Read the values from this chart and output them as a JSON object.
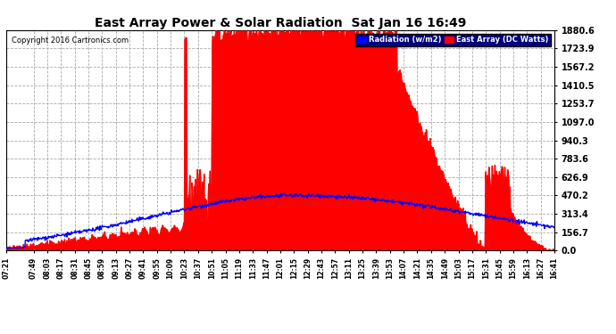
{
  "title": "East Array Power & Solar Radiation  Sat Jan 16 16:49",
  "copyright": "Copyright 2016 Cartronics.com",
  "yticks": [
    0.0,
    156.7,
    313.4,
    470.2,
    626.9,
    783.6,
    940.3,
    1097.0,
    1253.7,
    1410.5,
    1567.2,
    1723.9,
    1880.6
  ],
  "ymax": 1880.6,
  "ymin": 0.0,
  "bg_color": "#ffffff",
  "plot_bg_color": "#ffffff",
  "grid_color": "#aaaaaa",
  "title_color": "#000000",
  "radiation_color": "#0000ff",
  "east_array_fill": "#ff0000",
  "x_labels": [
    "07:21",
    "07:49",
    "08:03",
    "08:17",
    "08:31",
    "08:45",
    "08:59",
    "09:13",
    "09:27",
    "09:41",
    "09:55",
    "10:09",
    "10:23",
    "10:37",
    "10:51",
    "11:05",
    "11:19",
    "11:33",
    "11:47",
    "12:01",
    "12:15",
    "12:29",
    "12:43",
    "12:57",
    "13:11",
    "13:25",
    "13:39",
    "13:53",
    "14:07",
    "14:21",
    "14:35",
    "14:49",
    "15:03",
    "15:17",
    "15:31",
    "15:45",
    "15:59",
    "16:13",
    "16:27",
    "16:41"
  ]
}
